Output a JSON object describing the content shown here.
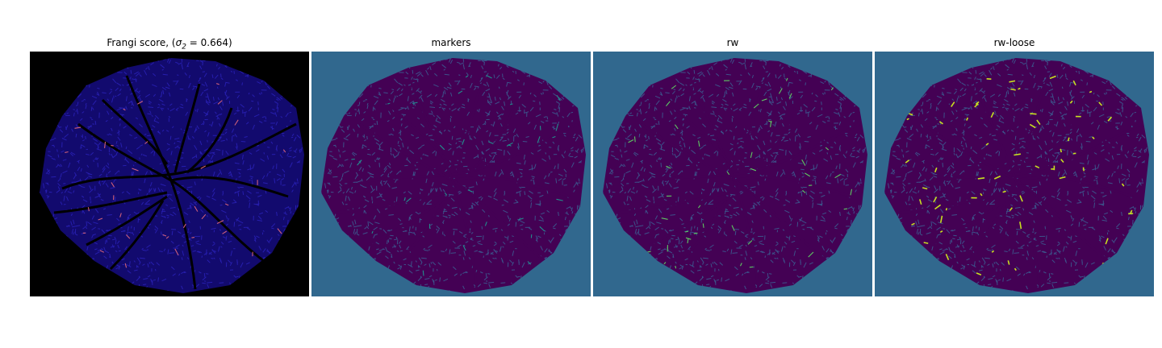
{
  "figure": {
    "panels": [
      {
        "title_prefix": "Frangi score, (",
        "title_symbol": "σ",
        "title_subscript": "2",
        "title_suffix": " = 0.664)",
        "background_color": "#000000",
        "tissue_color": "#120a6e",
        "texture_color": "#2a22b8",
        "vessel_color": "#000000",
        "highlight_color": "#d0607a"
      },
      {
        "title": "markers",
        "background_color": "#31688e",
        "tissue_color": "#440154",
        "texture_color": "#3b5f93",
        "vessel_color": "#440154",
        "highlight_color": "#21908d"
      },
      {
        "title": "rw",
        "background_color": "#31688e",
        "tissue_color": "#440154",
        "texture_color": "#3b5f93",
        "vessel_color": "#440154",
        "highlight_color": "#5ec962"
      },
      {
        "title": "rw-loose",
        "background_color": "#31688e",
        "tissue_color": "#440154",
        "texture_color": "#3b5f93",
        "vessel_color": "#440154",
        "highlight_color": "#c8e020"
      }
    ]
  }
}
